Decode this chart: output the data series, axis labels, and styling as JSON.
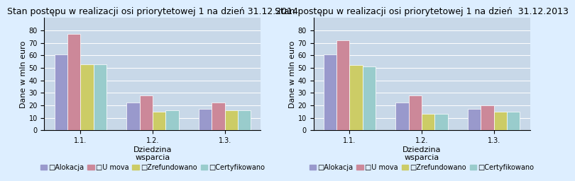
{
  "chart1": {
    "title": "Stan postępu w realizacji osi priorytetowej 1 na dzień 31.12.2014",
    "categories": [
      "1.1.",
      "1.2.",
      "1.3."
    ],
    "series": {
      "Alokacja": [
        61,
        22,
        17
      ],
      "Umova": [
        77,
        28,
        22
      ],
      "Zrefundowano": [
        53,
        15,
        16
      ],
      "Certyfikowano": [
        53,
        16,
        16
      ]
    }
  },
  "chart2": {
    "title": "Stan postępu w realizacji osi priorytetowej 1 na dzień  31.12.2013",
    "categories": [
      "1.1.",
      "1.2.",
      "1.3."
    ],
    "series": {
      "Alokacja": [
        61,
        22,
        17
      ],
      "Umova": [
        72,
        28,
        20
      ],
      "Zrefundowano": [
        52,
        13,
        15
      ],
      "Certyfikowano": [
        51,
        13,
        15
      ]
    }
  },
  "colors": {
    "Alokacja": "#9999CC",
    "Umova": "#CC8899",
    "Zrefundowano": "#CCCC66",
    "Certyfikowano": "#99CCCC"
  },
  "ylabel": "Dane w mln euro",
  "xlabel": "Dziedzina\nwsparcia",
  "ylim": [
    0,
    90
  ],
  "yticks": [
    0,
    10,
    20,
    30,
    40,
    50,
    60,
    70,
    80
  ],
  "legend_labels": [
    "Alokacja",
    "Umova",
    "Zrefundowano",
    "Certyfikowano"
  ],
  "legend_display": [
    "□Alokacja",
    "□U mova",
    "□Zrefundowano",
    "□Certyfikowano"
  ],
  "bar_width": 0.18,
  "background_color": "#DDEEFF",
  "plot_bg_color": "#C8D8E8",
  "title_fontsize": 9,
  "axis_fontsize": 8,
  "tick_fontsize": 7,
  "legend_fontsize": 7
}
